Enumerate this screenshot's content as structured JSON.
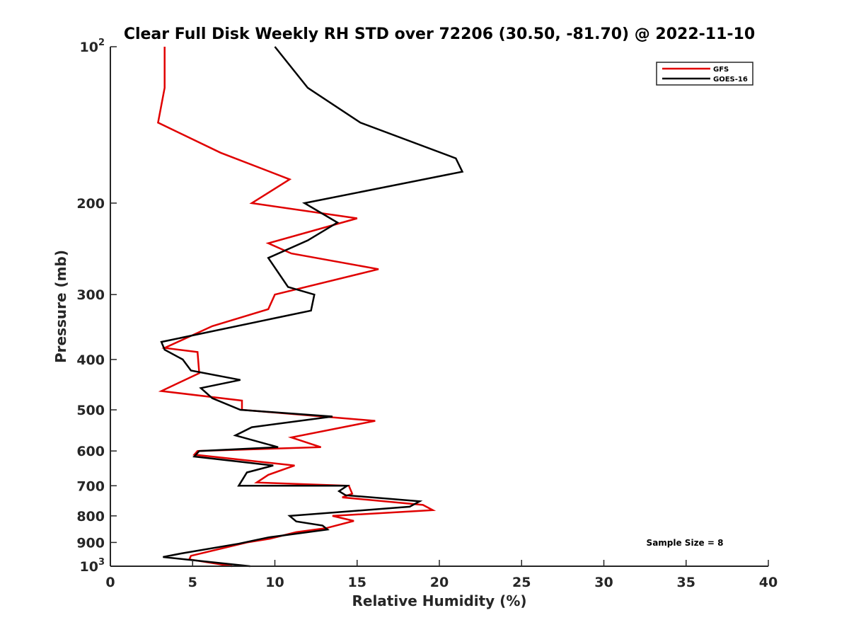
{
  "chart_data": {
    "type": "line",
    "title": "Clear Full Disk Weekly RH STD over 72206 (30.50, -81.70) @ 2022-11-10",
    "xlabel": "Relative Humidity (%)",
    "ylabel": "Pressure (mb)",
    "xlim": [
      0,
      40
    ],
    "ylim": [
      100,
      1000
    ],
    "yscale": "log",
    "y_reversed": true,
    "xticks": [
      0,
      5,
      10,
      15,
      20,
      25,
      30,
      35,
      40
    ],
    "xtick_labels": [
      "0",
      "5",
      "10",
      "15",
      "20",
      "25",
      "30",
      "35",
      "40"
    ],
    "yticks": [
      100,
      200,
      300,
      400,
      500,
      600,
      700,
      800,
      900,
      1000
    ],
    "ytick_labels": [
      "10^2",
      "200",
      "300",
      "400",
      "500",
      "600",
      "700",
      "800",
      "900",
      "10^3"
    ],
    "grid": false,
    "legend_position": "top-right",
    "annotation": "Sample Size = 8",
    "series": [
      {
        "name": "GFS",
        "color": "#e00000",
        "points": [
          [
            3.3,
            100
          ],
          [
            3.3,
            120
          ],
          [
            2.9,
            140
          ],
          [
            6.7,
            160
          ],
          [
            10.9,
            180
          ],
          [
            8.6,
            200
          ],
          [
            15.0,
            214
          ],
          [
            9.6,
            239
          ],
          [
            11.0,
            250
          ],
          [
            16.3,
            268
          ],
          [
            10.0,
            300
          ],
          [
            9.6,
            320
          ],
          [
            6.2,
            345
          ],
          [
            3.3,
            380
          ],
          [
            5.3,
            387
          ],
          [
            5.4,
            425
          ],
          [
            3.1,
            460
          ],
          [
            8.0,
            480
          ],
          [
            8.0,
            500
          ],
          [
            16.1,
            525
          ],
          [
            11.0,
            565
          ],
          [
            12.8,
            590
          ],
          [
            5.3,
            600
          ],
          [
            5.1,
            610
          ],
          [
            11.2,
            640
          ],
          [
            9.6,
            667
          ],
          [
            8.9,
            690
          ],
          [
            14.5,
            700
          ],
          [
            14.7,
            725
          ],
          [
            14.1,
            737
          ],
          [
            19.0,
            762
          ],
          [
            19.6,
            780
          ],
          [
            13.5,
            800
          ],
          [
            14.8,
            818
          ],
          [
            13.1,
            845
          ],
          [
            11.3,
            860
          ],
          [
            9.7,
            885
          ],
          [
            8.3,
            900
          ],
          [
            4.9,
            955
          ],
          [
            4.8,
            970
          ],
          [
            7.4,
            1000
          ]
        ]
      },
      {
        "name": "GOES-16",
        "color": "#000000",
        "points": [
          [
            10.0,
            100
          ],
          [
            12.0,
            120
          ],
          [
            15.2,
            140
          ],
          [
            21.0,
            164
          ],
          [
            21.4,
            174
          ],
          [
            11.8,
            200
          ],
          [
            13.8,
            218
          ],
          [
            12.0,
            236
          ],
          [
            9.6,
            255
          ],
          [
            10.8,
            290
          ],
          [
            12.4,
            300
          ],
          [
            12.2,
            322
          ],
          [
            3.1,
            370
          ],
          [
            3.3,
            383
          ],
          [
            4.4,
            400
          ],
          [
            4.9,
            420
          ],
          [
            7.9,
            438
          ],
          [
            5.5,
            454
          ],
          [
            6.2,
            475
          ],
          [
            7.9,
            500
          ],
          [
            13.5,
            515
          ],
          [
            8.6,
            540
          ],
          [
            7.6,
            560
          ],
          [
            10.2,
            590
          ],
          [
            5.4,
            600
          ],
          [
            5.1,
            615
          ],
          [
            9.9,
            640
          ],
          [
            8.3,
            660
          ],
          [
            7.8,
            700
          ],
          [
            14.4,
            700
          ],
          [
            13.9,
            717
          ],
          [
            14.3,
            730
          ],
          [
            18.8,
            750
          ],
          [
            18.2,
            768
          ],
          [
            10.9,
            800
          ],
          [
            11.3,
            820
          ],
          [
            12.9,
            835
          ],
          [
            13.2,
            850
          ],
          [
            9.6,
            880
          ],
          [
            7.8,
            905
          ],
          [
            4.3,
            945
          ],
          [
            3.2,
            960
          ],
          [
            8.5,
            1000
          ]
        ]
      }
    ]
  }
}
